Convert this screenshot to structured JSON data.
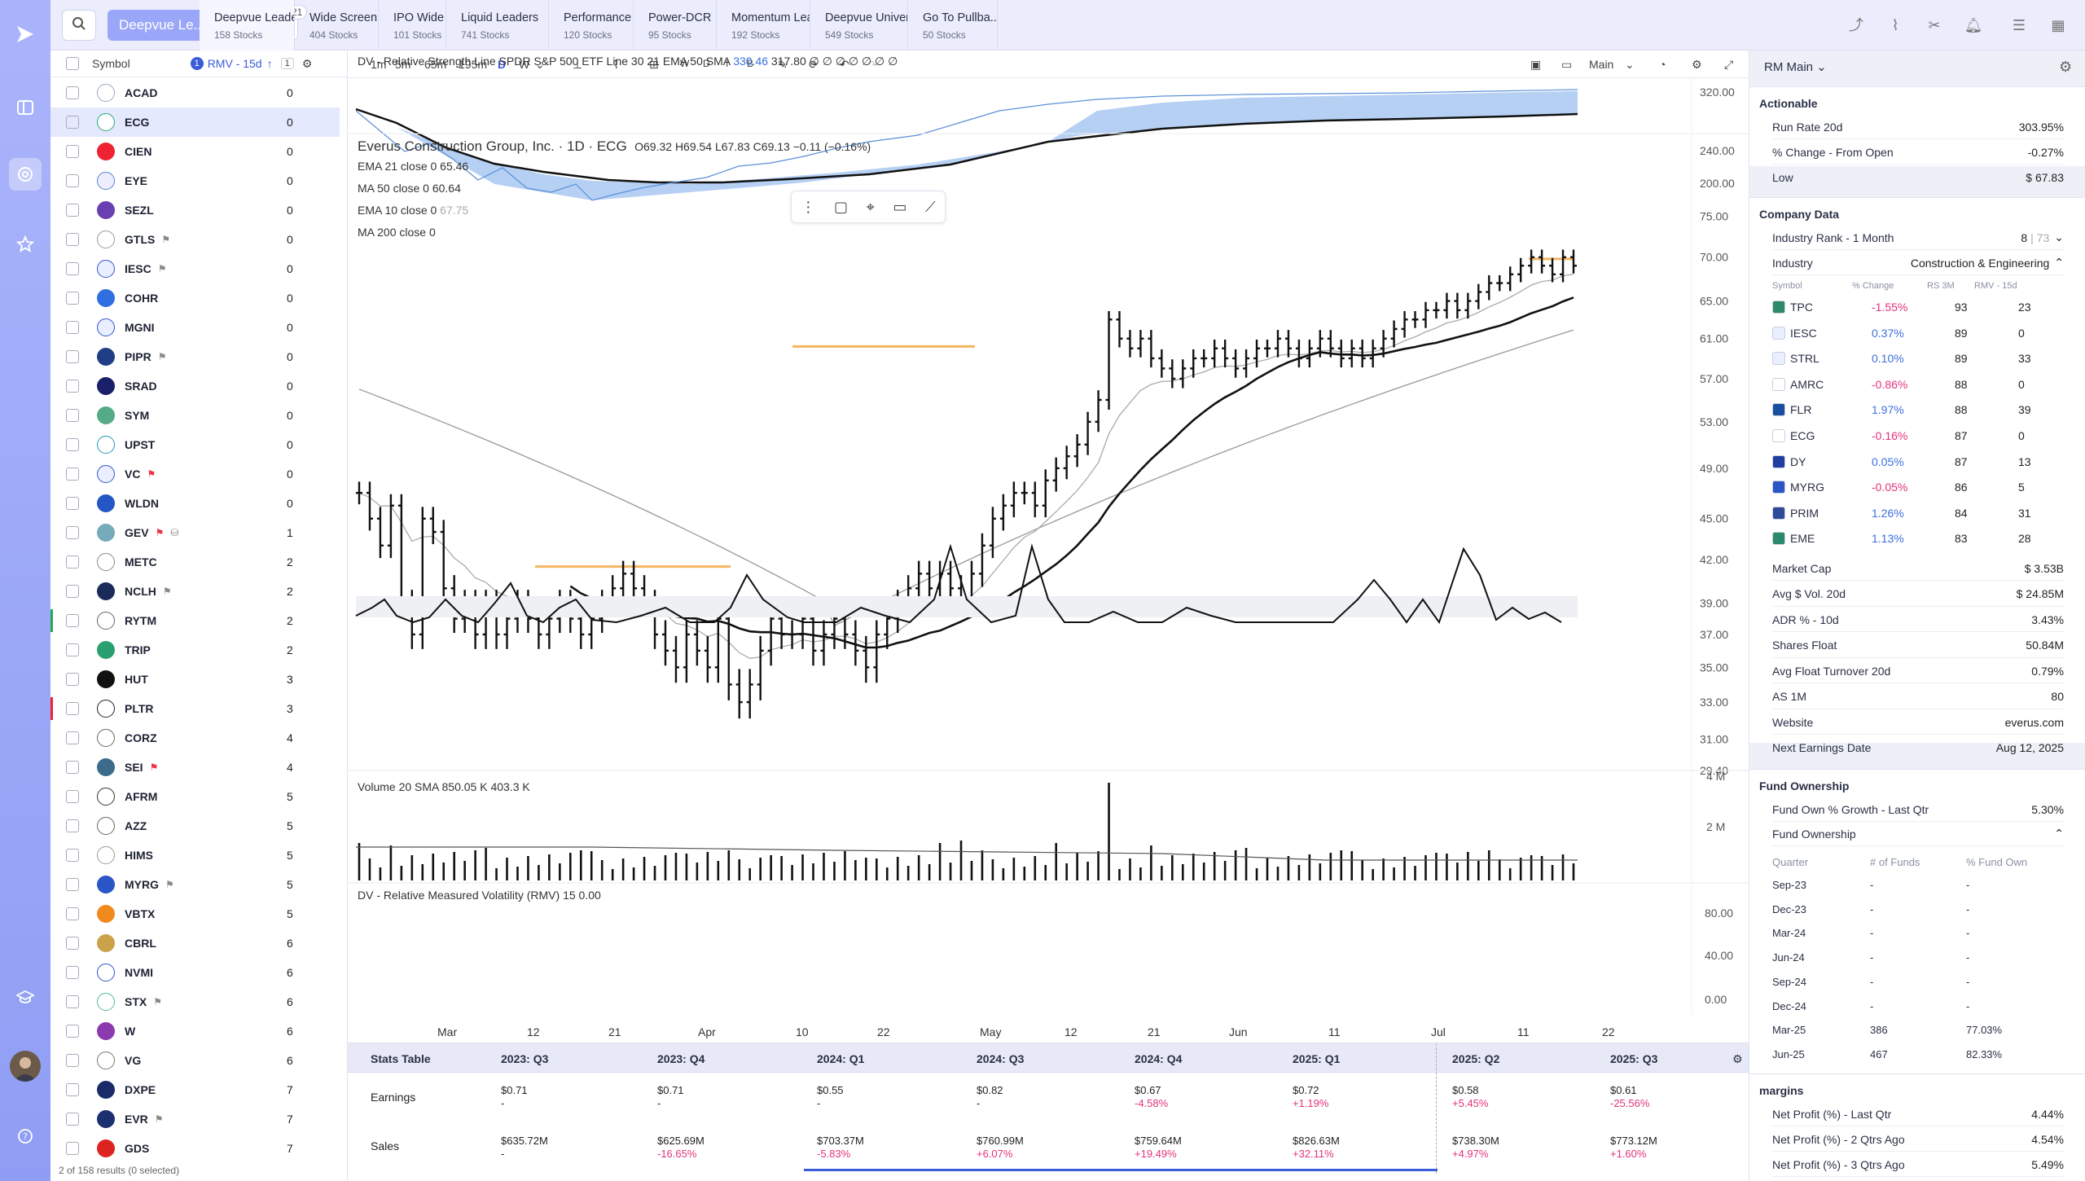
{
  "nav_icons": [
    "logo-icon",
    "dashboard-icon",
    "target-icon",
    "star-icon",
    "graduation-cap-icon",
    "avatar",
    "help-icon"
  ],
  "topbar": {
    "watchlist": "Deepvue Le...",
    "count": "21",
    "tabs": [
      {
        "name": "Deepvue Leaders",
        "count": "158 Stocks"
      },
      {
        "name": "Wide Screen",
        "count": "404 Stocks"
      },
      {
        "name": "IPO Wide",
        "count": "101 Stocks"
      },
      {
        "name": "Liquid Leaders",
        "count": "741 Stocks"
      },
      {
        "name": "Performance ...",
        "count": "120 Stocks"
      },
      {
        "name": "Power-DCR",
        "count": "95 Stocks"
      },
      {
        "name": "Momentum Lea...",
        "count": "192 Stocks"
      },
      {
        "name": "Deepvue Univers...",
        "count": "549 Stocks"
      },
      {
        "name": "Go To Pullba...",
        "count": "50 Stocks"
      }
    ]
  },
  "list": {
    "col_symbol": "Symbol",
    "col_sort": "RMV - 15d",
    "col_sort_badge": "1",
    "col_num": "1",
    "rows": [
      {
        "sym": "ACAD",
        "val": "0",
        "logo": "#fff",
        "ring": "#9ab",
        "flag": ""
      },
      {
        "sym": "ECG",
        "val": "0",
        "logo": "#fff",
        "ring": "#2a7",
        "flag": "",
        "sel": true
      },
      {
        "sym": "CIEN",
        "val": "0",
        "logo": "#e23",
        "flag": ""
      },
      {
        "sym": "EYE",
        "val": "0",
        "logo": "#eef",
        "ring": "#58c",
        "flag": ""
      },
      {
        "sym": "SEZL",
        "val": "0",
        "logo": "#6a3fb0",
        "flag": ""
      },
      {
        "sym": "GTLS",
        "val": "0",
        "logo": "#fff",
        "ring": "#999",
        "flag": "flag"
      },
      {
        "sym": "IESC",
        "val": "0",
        "logo": "#e9efff",
        "ring": "#35c",
        "flag": "flag"
      },
      {
        "sym": "COHR",
        "val": "0",
        "logo": "#2f6fe0",
        "flag": ""
      },
      {
        "sym": "MGNI",
        "val": "0",
        "logo": "#e9efff",
        "ring": "#35c",
        "flag": ""
      },
      {
        "sym": "PIPR",
        "val": "0",
        "logo": "#1f3e86",
        "flag": "flag"
      },
      {
        "sym": "SRAD",
        "val": "0",
        "logo": "#1a1f6a",
        "flag": ""
      },
      {
        "sym": "SYM",
        "val": "0",
        "logo": "#5a8",
        "flag": ""
      },
      {
        "sym": "UPST",
        "val": "0",
        "logo": "#fff",
        "ring": "#29b",
        "flag": ""
      },
      {
        "sym": "VC",
        "val": "0",
        "logo": "#e9efff",
        "ring": "#35c",
        "flag": "red"
      },
      {
        "sym": "WLDN",
        "val": "0",
        "logo": "#2457c5",
        "flag": ""
      },
      {
        "sym": "GEV",
        "val": "1",
        "logo": "#7ab",
        "flag": "red",
        "extra": true
      },
      {
        "sym": "METC",
        "val": "2",
        "logo": "#fff",
        "ring": "#888",
        "flag": ""
      },
      {
        "sym": "NCLH",
        "val": "2",
        "logo": "#1a2b5a",
        "flag": "flag"
      },
      {
        "sym": "RYTM",
        "val": "2",
        "logo": "#fff",
        "ring": "#666",
        "flag": "",
        "bar": "#2a5"
      },
      {
        "sym": "TRIP",
        "val": "2",
        "logo": "#2aa070",
        "flag": ""
      },
      {
        "sym": "HUT",
        "val": "3",
        "logo": "#111",
        "flag": ""
      },
      {
        "sym": "PLTR",
        "val": "3",
        "logo": "#fff",
        "ring": "#222",
        "flag": "",
        "bar": "#e23"
      },
      {
        "sym": "CORZ",
        "val": "4",
        "logo": "#fff",
        "ring": "#666",
        "flag": ""
      },
      {
        "sym": "SEI",
        "val": "4",
        "logo": "#3b6a8a",
        "flag": "red"
      },
      {
        "sym": "AFRM",
        "val": "5",
        "logo": "#fff",
        "ring": "#333",
        "flag": ""
      },
      {
        "sym": "AZZ",
        "val": "5",
        "logo": "#fff",
        "ring": "#666",
        "flag": ""
      },
      {
        "sym": "HIMS",
        "val": "5",
        "logo": "#fff",
        "ring": "#999",
        "flag": ""
      },
      {
        "sym": "MYRG",
        "val": "5",
        "logo": "#2b56c7",
        "flag": "flag"
      },
      {
        "sym": "VBTX",
        "val": "5",
        "logo": "#f08a1c",
        "flag": ""
      },
      {
        "sym": "CBRL",
        "val": "6",
        "logo": "#c9a24a",
        "flag": ""
      },
      {
        "sym": "NVMI",
        "val": "6",
        "logo": "#fff",
        "ring": "#35c",
        "flag": ""
      },
      {
        "sym": "STX",
        "val": "6",
        "logo": "#fff",
        "ring": "#5b9",
        "flag": "flag"
      },
      {
        "sym": "W",
        "val": "6",
        "logo": "#8b3ab0",
        "flag": ""
      },
      {
        "sym": "VG",
        "val": "6",
        "logo": "#fff",
        "ring": "#777",
        "flag": ""
      },
      {
        "sym": "DXPE",
        "val": "7",
        "logo": "#1a2b6a",
        "flag": ""
      },
      {
        "sym": "EVR",
        "val": "7",
        "logo": "#1a3070",
        "flag": "flag"
      },
      {
        "sym": "GDS",
        "val": "7",
        "logo": "#d22",
        "flag": ""
      }
    ],
    "footer": "2 of 158 results (0 selected)"
  },
  "toolbar": {
    "intervals": [
      "1m",
      "5m",
      "65m",
      "195m",
      "D",
      "W"
    ],
    "extra": [
      "W",
      "D",
      "I",
      "B"
    ],
    "layout": "Main"
  },
  "chart": {
    "rs_title": "DV - Relative Strength Line SPDR S&P 500 ETF Line 30 21 EMA 50 SMA",
    "rs_v1": "330.46",
    "rs_v2": "317.80 ∅ ∅ ∅ ∅ ∅ ∅ ∅",
    "title": "Everus Construction Group, Inc. · 1D · ECG",
    "ohlc": "O69.32  H69.54  L67.83  C69.13  −0.11 (−0.16%)",
    "ind1": "EMA 21 close 0  65.46",
    "ind2": "MA 50 close 0  60.64",
    "ind3": "EMA 10 close 0",
    "ind3v": "67.75",
    "ind4": "MA 200 close 0",
    "vol_title": "Volume 20 SMA  850.05 K  403.3 K",
    "rmv_title": "DV - Relative Measured Volatility (RMV) 15  0.00",
    "price_axis": [
      "75.00",
      "70.00",
      "65.00",
      "61.00",
      "57.00",
      "53.00",
      "49.00",
      "45.00",
      "42.00",
      "39.00",
      "37.00",
      "35.00",
      "33.00",
      "31.00",
      "29.40"
    ],
    "rs_axis": [
      "320.00",
      "240.00",
      "200.00"
    ],
    "vol_axis": [
      "4 M",
      "2 M"
    ],
    "rmv_axis": [
      "80.00",
      "40.00",
      "0.00"
    ],
    "x_labels": [
      "Mar",
      "12",
      "21",
      "Apr",
      "10",
      "22",
      "May",
      "12",
      "21",
      "Jun",
      "11",
      "Jul",
      "11",
      "22"
    ]
  },
  "chart_data": {
    "type": "candlestick",
    "title": "Everus Construction Group, Inc. · 1D · ECG",
    "close": [
      47,
      45,
      43,
      46,
      39,
      37,
      45,
      44,
      40,
      38,
      39,
      37,
      39,
      37,
      38,
      39,
      38,
      37,
      38,
      39,
      38,
      37,
      38,
      39,
      40,
      41,
      40,
      39,
      37,
      36,
      35,
      37,
      36,
      35,
      38,
      34,
      33,
      34,
      36,
      38,
      37,
      37,
      38,
      36,
      37,
      38,
      37,
      36,
      35,
      37,
      38,
      39,
      40,
      41,
      40,
      41,
      40,
      39,
      41,
      43,
      45,
      46,
      47,
      47,
      46,
      48,
      49,
      50,
      51,
      53,
      55,
      63,
      61,
      60,
      61,
      59,
      58,
      57,
      58,
      59,
      59,
      60,
      59,
      58,
      59,
      60,
      60,
      61,
      60,
      59,
      60,
      61,
      60,
      59,
      60,
      59,
      60,
      61,
      62,
      63,
      63,
      64,
      64,
      65,
      64,
      65,
      66,
      67,
      67,
      68,
      69,
      70,
      69,
      68,
      70,
      69
    ]
  },
  "right": {
    "layout": "RM Main",
    "actionable": {
      "title": "Actionable",
      "items": [
        {
          "k": "Run Rate 20d",
          "v": "303.95%",
          "c": "pos"
        },
        {
          "k": "% Change - From Open",
          "v": "-0.27%",
          "c": "neg"
        },
        {
          "k": "Low",
          "v": "$ 67.83",
          "c": ""
        }
      ]
    },
    "company": {
      "title": "Company Data",
      "rank_k": "Industry Rank - 1 Month",
      "rank_v": "8",
      "rank_of": "| 73",
      "ind_k": "Industry",
      "ind_v": "Construction & Engineering"
    },
    "peers_hdr": [
      "Symbol",
      "% Change",
      "RS 3M",
      "RMV - 15d"
    ],
    "peers": [
      {
        "s": "TPC",
        "c": "-1.55%",
        "rs": "93",
        "r": "23",
        "cc": "neg"
      },
      {
        "s": "IESC",
        "c": "0.37%",
        "rs": "89",
        "r": "0",
        "cc": "pos"
      },
      {
        "s": "STRL",
        "c": "0.10%",
        "rs": "89",
        "r": "33",
        "cc": "pos"
      },
      {
        "s": "AMRC",
        "c": "-0.86%",
        "rs": "88",
        "r": "0",
        "cc": "neg"
      },
      {
        "s": "FLR",
        "c": "1.97%",
        "rs": "88",
        "r": "39",
        "cc": "pos"
      },
      {
        "s": "ECG",
        "c": "-0.16%",
        "rs": "87",
        "r": "0",
        "cc": "neg"
      },
      {
        "s": "DY",
        "c": "0.05%",
        "rs": "87",
        "r": "13",
        "cc": "pos"
      },
      {
        "s": "MYRG",
        "c": "-0.05%",
        "rs": "86",
        "r": "5",
        "cc": "neg"
      },
      {
        "s": "PRIM",
        "c": "1.26%",
        "rs": "84",
        "r": "31",
        "cc": "pos"
      },
      {
        "s": "EME",
        "c": "1.13%",
        "rs": "83",
        "r": "28",
        "cc": "pos"
      }
    ],
    "company_kv": [
      {
        "k": "Market Cap",
        "v": "$ 3.53B"
      },
      {
        "k": "Avg $ Vol. 20d",
        "v": "$ 24.85M"
      },
      {
        "k": "ADR % - 10d",
        "v": "3.43%"
      },
      {
        "k": "Shares Float",
        "v": "50.84M"
      },
      {
        "k": "Avg Float Turnover 20d",
        "v": "0.79%"
      },
      {
        "k": "AS 1M",
        "v": "80"
      },
      {
        "k": "Website",
        "v": "everus.com"
      },
      {
        "k": "Next Earnings Date",
        "v": "Aug 12, 2025"
      }
    ],
    "fund": {
      "title": "Fund Ownership",
      "growth_k": "Fund Own % Growth - Last Qtr",
      "growth_v": "5.30%",
      "sub": "Fund Ownership",
      "hdr": [
        "Quarter",
        "# of Funds",
        "% Fund Own"
      ],
      "rows": [
        [
          "Sep-23",
          "-",
          "-"
        ],
        [
          "Dec-23",
          "-",
          "-"
        ],
        [
          "Mar-24",
          "-",
          "-"
        ],
        [
          "Jun-24",
          "-",
          "-"
        ],
        [
          "Sep-24",
          "-",
          "-"
        ],
        [
          "Dec-24",
          "-",
          "-"
        ],
        [
          "Mar-25",
          "386",
          "77.03%"
        ],
        [
          "Jun-25",
          "467",
          "82.33%"
        ]
      ]
    },
    "margins": {
      "title": "margins",
      "items": [
        {
          "k": "Net Profit (%) - Last Qtr",
          "v": "4.44%"
        },
        {
          "k": "Net Profit (%) - 2 Qtrs Ago",
          "v": "4.54%"
        },
        {
          "k": "Net Profit (%) - 3 Qtrs Ago",
          "v": "5.49%"
        }
      ]
    }
  },
  "stats": {
    "title": "Stats Table",
    "quarters": [
      "2023: Q3",
      "2023: Q4",
      "2024: Q1",
      "2024: Q3",
      "2024: Q4",
      "2025: Q1",
      "2025: Q2",
      "2025: Q3"
    ],
    "earnings_label": "Earnings",
    "earnings": [
      [
        "$0.71",
        "-",
        ""
      ],
      [
        "$0.71",
        "-",
        ""
      ],
      [
        "$0.55",
        "-",
        ""
      ],
      [
        "$0.82",
        "-",
        ""
      ],
      [
        "$0.67",
        "-4.58%",
        "neg"
      ],
      [
        "$0.72",
        "+1.19%",
        "neg"
      ],
      [
        "$0.58",
        "+5.45%",
        "neg"
      ],
      [
        "$0.61",
        "-25.56%",
        "neg"
      ]
    ],
    "sales_label": "Sales",
    "sales": [
      [
        "$635.72M",
        "-",
        ""
      ],
      [
        "$625.69M",
        "-16.65%",
        "neg"
      ],
      [
        "$703.37M",
        "-5.83%",
        "neg"
      ],
      [
        "$760.99M",
        "+6.07%",
        "neg"
      ],
      [
        "$759.64M",
        "+19.49%",
        "neg"
      ],
      [
        "$826.63M",
        "+32.11%",
        "neg"
      ],
      [
        "$738.30M",
        "+4.97%",
        "neg"
      ],
      [
        "$773.12M",
        "+1.60%",
        "neg"
      ]
    ]
  }
}
